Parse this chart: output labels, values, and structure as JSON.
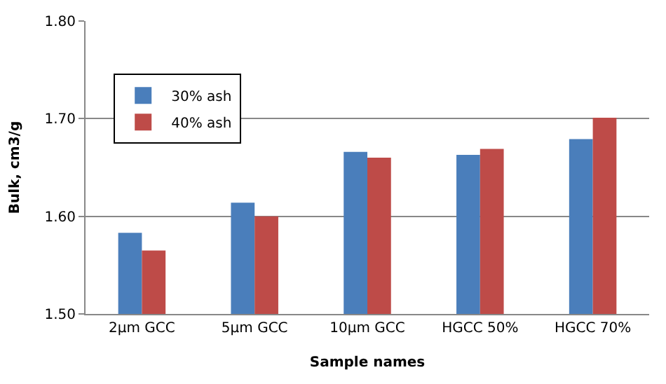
{
  "chart_data": {
    "type": "bar",
    "xlabel": "Sample names",
    "ylabel": "Bulk, cm3/g",
    "categories": [
      "2µm GCC",
      "5µm GCC",
      "10µm GCC",
      "HGCC 50%",
      "HGCC 70%"
    ],
    "series": [
      {
        "name": "30% ash",
        "color": "#4a7ebb",
        "values": [
          1.583,
          1.614,
          1.666,
          1.663,
          1.679
        ]
      },
      {
        "name": "40% ash",
        "color": "#be4b48",
        "values": [
          1.565,
          1.6,
          1.66,
          1.669,
          1.701
        ]
      }
    ],
    "ylim": [
      1.5,
      1.8
    ],
    "yticks": [
      {
        "value": 1.5,
        "label": "1.50"
      },
      {
        "value": 1.6,
        "label": "1.60"
      },
      {
        "value": 1.7,
        "label": "1.70"
      },
      {
        "value": 1.8,
        "label": "1.80"
      }
    ],
    "grid": "y",
    "legend": "top left"
  }
}
